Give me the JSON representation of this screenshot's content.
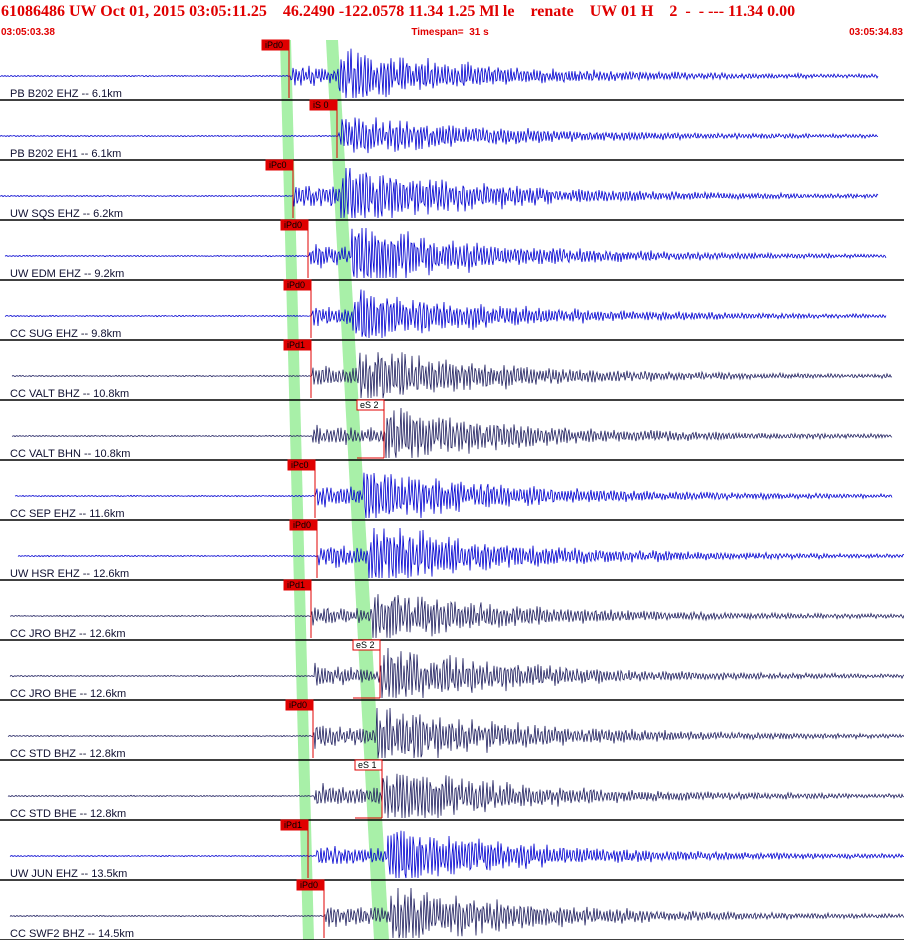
{
  "header": {
    "title": "61086486 UW Oct 01, 2015 03:05:11.25    46.2490 -122.0578 11.34 1.25 Ml le    renate    UW 01 H    2  -  - --- 11.34 0.00",
    "start_time": "03:05:03.38",
    "timespan": "Timespan=  31 s",
    "end_time": "03:05:34.83"
  },
  "traces": [
    {
      "label": "PB B202 EHZ -- 6.1km",
      "pick": "iPd0"
    },
    {
      "label": "PB B202 EH1 -- 6.1km",
      "pick": "iS 0"
    },
    {
      "label": "UW SQS EHZ -- 6.2km",
      "pick": "iPc0"
    },
    {
      "label": "UW EDM EHZ -- 9.2km",
      "pick": "iPd0"
    },
    {
      "label": "CC SUG EHZ -- 9.8km",
      "pick": "iPd0"
    },
    {
      "label": "CC VALT BHZ -- 10.8km",
      "pick": "iPd1"
    },
    {
      "label": "CC VALT BHN -- 10.8km",
      "pick": "eS 2"
    },
    {
      "label": "CC SEP EHZ -- 11.6km",
      "pick": "iPc0"
    },
    {
      "label": "UW HSR EHZ -- 12.6km",
      "pick": "iPd0"
    },
    {
      "label": "CC JRO BHZ -- 12.6km",
      "pick": "iPd1"
    },
    {
      "label": "CC JRO BHE -- 12.6km",
      "pick": "eS 2"
    },
    {
      "label": "CC STD BHZ -- 12.8km",
      "pick": "iPd0"
    },
    {
      "label": "CC STD BHE -- 12.8km",
      "pick": "eS 1"
    },
    {
      "label": "UW JUN EHZ -- 13.5km",
      "pick": "iPd1"
    },
    {
      "label": "CC SWF2 BHZ -- 14.5km",
      "pick": "iPd0"
    }
  ]
}
